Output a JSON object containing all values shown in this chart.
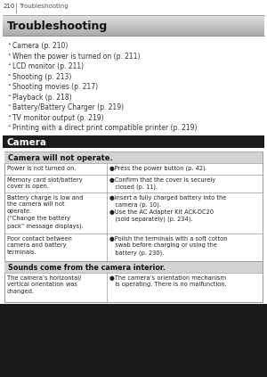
{
  "page_num": "210",
  "page_header": "Troubleshooting",
  "title": "Troubleshooting",
  "bullets": [
    "Camera (p. 210)",
    "When the power is turned on (p. 211)",
    "LCD monitor (p. 211)",
    "Shooting (p. 213)",
    "Shooting movies (p. 217)",
    "Playback (p. 218)",
    "Battery/Battery Charger (p. 219)",
    "TV monitor output (p. 219)",
    "Printing with a direct print compatible printer (p. 219)"
  ],
  "section_header": "Camera",
  "table_header1": "Camera will not operate.",
  "table_rows": [
    {
      "left": "Power is not turned on.",
      "right": "●Press the power button (p. 42)."
    },
    {
      "left": "Memory card slot/battery\ncover is open.",
      "right": "●Confirm that the cover is securely\n   closed (p. 11)."
    },
    {
      "left": "Battery charge is low and\nthe camera will not\noperate.\n(“Change the battery\npack” message displays).",
      "right": "●Insert a fully charged battery into the\n   camera (p. 10).\n●Use the AC Adapter Kit ACK-DC20\n   (sold separately) (p. 234)."
    },
    {
      "left": "Poor contact between\ncamera and battery\nterminals.",
      "right": "●Polish the terminals with a soft cotton\n   swab before charging or using the\n   battery (p. 230)."
    }
  ],
  "table_header2": "Sounds come from the camera interior.",
  "table_rows2": [
    {
      "left": "The camera’s horizontal/\nvertical orientation was\nchanged.",
      "right": "●The camera’s orientation mechanism\n   is operating. There is no malfunction."
    }
  ],
  "bg_color": "#ffffff",
  "title_bg_dark": "#989898",
  "title_bg_light": "#e0e0e0",
  "section_header_bg": "#1c1c1c",
  "section_header_color": "#ffffff",
  "table_header_bg": "#d3d3d3",
  "table_border": "#999999",
  "table_outer_border": "#888888",
  "table_bg": "#ffffff",
  "bottom_bg": "#1a1a1a"
}
